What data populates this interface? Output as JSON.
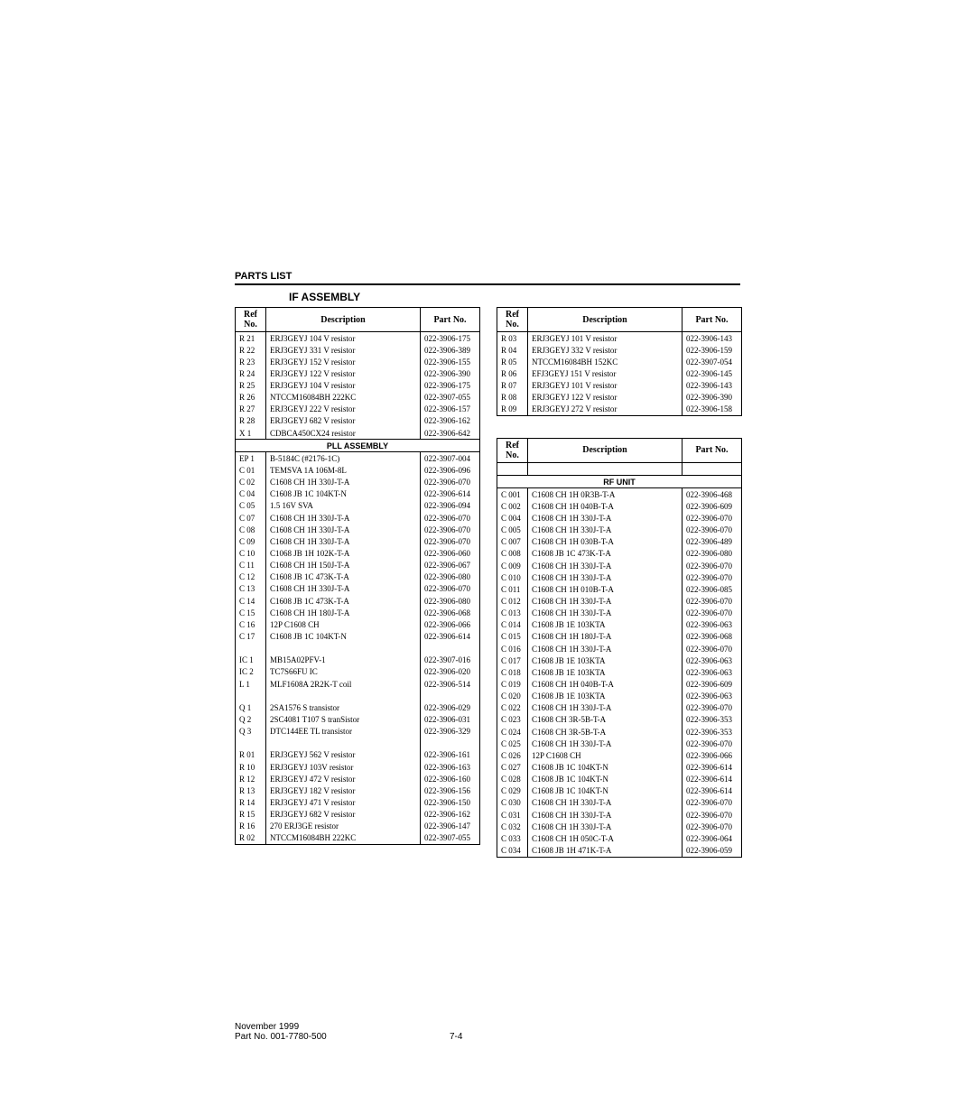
{
  "section_header": "PARTS LIST",
  "assembly_title": "IF ASSEMBLY",
  "headers": {
    "ref": "Ref No.",
    "desc": "Description",
    "pn": "Part No."
  },
  "footer_line1": "November 1999",
  "footer_line2": "Part No. 001-7780-500",
  "page_number": "7-4",
  "left_top_rows": [
    {
      "ref": "R 21",
      "desc": "ERJ3GEYJ 104 V resistor",
      "pn": "022-3906-175"
    },
    {
      "ref": "R 22",
      "desc": "ERJ3GEYJ 331 V resistor",
      "pn": "022-3906-389"
    },
    {
      "ref": "R 23",
      "desc": "ERJ3GEYJ 152 V resistor",
      "pn": "022-3906-155"
    },
    {
      "ref": "R 24",
      "desc": "ERJ3GEYJ 122 V resistor",
      "pn": "022-3906-390"
    },
    {
      "ref": "R 25",
      "desc": "ERJ3GEYJ 104 V resistor",
      "pn": "022-3906-175"
    },
    {
      "ref": "R 26",
      "desc": "NTCCM16084BH 222KC",
      "pn": "022-3907-055"
    },
    {
      "ref": "R 27",
      "desc": "ERJ3GEYJ 222 V resistor",
      "pn": "022-3906-157"
    },
    {
      "ref": "R 28",
      "desc": "ERJ3GEYJ 682 V resistor",
      "pn": "022-3906-162"
    },
    {
      "ref": "X 1",
      "desc": "CDBCA450CX24 resistor",
      "pn": "022-3906-642"
    }
  ],
  "pll_heading": "PLL ASSEMBLY",
  "pll_rows": [
    {
      "ref": "EP 1",
      "desc": "B-5184C (#2176-1C)",
      "pn": "022-3907-004"
    },
    {
      "ref": "C 01",
      "desc": "TEMSVA 1A 106M-8L",
      "pn": "022-3906-096"
    },
    {
      "ref": "C 02",
      "desc": "C1608 CH 1H 330J-T-A",
      "pn": "022-3906-070"
    },
    {
      "ref": "C 04",
      "desc": "C1608 JB 1C 104KT-N",
      "pn": "022-3906-614"
    },
    {
      "ref": "C 05",
      "desc": "1.5 16V SVA",
      "pn": "022-3906-094"
    },
    {
      "ref": "C 07",
      "desc": "C1608 CH 1H 330J-T-A",
      "pn": "022-3906-070"
    },
    {
      "ref": "C 08",
      "desc": "C1608 CH 1H 330J-T-A",
      "pn": "022-3906-070"
    },
    {
      "ref": "C 09",
      "desc": "C1608 CH 1H 330J-T-A",
      "pn": "022-3906-070"
    },
    {
      "ref": "C 10",
      "desc": "C1068 JB 1H 102K-T-A",
      "pn": "022-3906-060"
    },
    {
      "ref": "C 11",
      "desc": "C1608 CH 1H 150J-T-A",
      "pn": "022-3906-067"
    },
    {
      "ref": "C 12",
      "desc": "C1608 JB 1C 473K-T-A",
      "pn": "022-3906-080"
    },
    {
      "ref": "C 13",
      "desc": "C1608 CH 1H 330J-T-A",
      "pn": "022-3906-070"
    },
    {
      "ref": "C 14",
      "desc": "C1608 JB 1C 473K-T-A",
      "pn": "022-3906-080"
    },
    {
      "ref": "C 15",
      "desc": "C1608 CH 1H 180J-T-A",
      "pn": "022-3906-068"
    },
    {
      "ref": "C 16",
      "desc": "12P C1608 CH",
      "pn": "022-3906-066"
    },
    {
      "ref": "C 17",
      "desc": "C1608 JB 1C 104KT-N",
      "pn": "022-3906-614"
    },
    {
      "ref": "",
      "desc": "",
      "pn": ""
    },
    {
      "ref": "IC 1",
      "desc": "MB15A02PFV-1",
      "pn": "022-3907-016"
    },
    {
      "ref": "IC 2",
      "desc": "TC7S66FU IC",
      "pn": "022-3906-020"
    },
    {
      "ref": "L 1",
      "desc": "MLF1608A 2R2K-T coil",
      "pn": "022-3906-514"
    },
    {
      "ref": "",
      "desc": "",
      "pn": ""
    },
    {
      "ref": "Q 1",
      "desc": "2SA1576 S transistor",
      "pn": "022-3906-029"
    },
    {
      "ref": "Q 2",
      "desc": "2SC4081 T107 S tranSistor",
      "pn": "022-3906-031"
    },
    {
      "ref": "Q 3",
      "desc": "DTC144EE TL transistor",
      "pn": "022-3906-329"
    },
    {
      "ref": "",
      "desc": "",
      "pn": ""
    },
    {
      "ref": "R 01",
      "desc": "ERJ3GEYJ 562 V resistor",
      "pn": "022-3906-161"
    },
    {
      "ref": "R 10",
      "desc": "ERJ3GEYJ 103V resistor",
      "pn": "022-3906-163"
    },
    {
      "ref": "R 12",
      "desc": "ERJ3GEYJ 472 V resistor",
      "pn": "022-3906-160"
    },
    {
      "ref": "R 13",
      "desc": "ERJ3GEYJ 182 V resistor",
      "pn": "022-3906-156"
    },
    {
      "ref": "R 14",
      "desc": "ERJ3GEYJ 471 V resistor",
      "pn": "022-3906-150"
    },
    {
      "ref": "R 15",
      "desc": "ERJ3GEYJ 682 V resistor",
      "pn": "022-3906-162"
    },
    {
      "ref": "R 16",
      "desc": "270 ERJ3GE resistor",
      "pn": "022-3906-147"
    },
    {
      "ref": "R 02",
      "desc": "NTCCM16084BH 222KC",
      "pn": "022-3907-055"
    }
  ],
  "right_top_rows": [
    {
      "ref": "R 03",
      "desc": "ERJ3GEYJ 101 V resistor",
      "pn": "022-3906-143"
    },
    {
      "ref": "R 04",
      "desc": "ERJ3GEYJ 332 V resistor",
      "pn": "022-3906-159"
    },
    {
      "ref": "R 05",
      "desc": "NTCCM16084BH 152KC",
      "pn": "022-3907-054"
    },
    {
      "ref": "R 06",
      "desc": "EFJ3GEYJ 151 V resistor",
      "pn": "022-3906-145"
    },
    {
      "ref": "R 07",
      "desc": "ERJ3GEYJ 101 V resistor",
      "pn": "022-3906-143"
    },
    {
      "ref": "R 08",
      "desc": "ERJ3GEYJ 122 V resistor",
      "pn": "022-3906-390"
    },
    {
      "ref": "R 09",
      "desc": "ERJ3GEYJ 272 V resistor",
      "pn": "022-3906-158"
    }
  ],
  "rf_heading": "RF UNIT",
  "rf_rows": [
    {
      "ref": "C 001",
      "desc": "C1608 CH 1H 0R3B-T-A",
      "pn": "022-3906-468"
    },
    {
      "ref": "C 002",
      "desc": "C1608 CH 1H 040B-T-A",
      "pn": "022-3906-609"
    },
    {
      "ref": "C 004",
      "desc": "C1608 CH 1H 330J-T-A",
      "pn": "022-3906-070"
    },
    {
      "ref": "C 005",
      "desc": "C1608 CH 1H 330J-T-A",
      "pn": "022-3906-070"
    },
    {
      "ref": "C 007",
      "desc": "C1608 CH 1H 030B-T-A",
      "pn": "022-3906-489"
    },
    {
      "ref": "C 008",
      "desc": "C1608 JB 1C 473K-T-A",
      "pn": "022-3906-080"
    },
    {
      "ref": "C 009",
      "desc": "C1608 CH 1H 330J-T-A",
      "pn": "022-3906-070"
    },
    {
      "ref": "C 010",
      "desc": "C1608 CH 1H 330J-T-A",
      "pn": "022-3906-070"
    },
    {
      "ref": "C 011",
      "desc": "C1608 CH 1H 010B-T-A",
      "pn": "022-3906-085"
    },
    {
      "ref": "C 012",
      "desc": "C1608 CH 1H 330J-T-A",
      "pn": "022-3906-070"
    },
    {
      "ref": "C 013",
      "desc": "C1608 CH 1H 330J-T-A",
      "pn": "022-3906-070"
    },
    {
      "ref": "C 014",
      "desc": "C1608 JB 1E 103KTA",
      "pn": "022-3906-063"
    },
    {
      "ref": "C 015",
      "desc": "C1608 CH 1H 180J-T-A",
      "pn": "022-3906-068"
    },
    {
      "ref": "C 016",
      "desc": "C1608 CH 1H 330J-T-A",
      "pn": "022-3906-070"
    },
    {
      "ref": "C 017",
      "desc": "C1608 JB 1E 103KTA",
      "pn": "022-3906-063"
    },
    {
      "ref": "C 018",
      "desc": "C1608 JB 1E 103KTA",
      "pn": "022-3906-063"
    },
    {
      "ref": "C 019",
      "desc": "C1608 CH 1H 040B-T-A",
      "pn": "022-3906-609"
    },
    {
      "ref": "C 020",
      "desc": "C1608 JB 1E 103KTA",
      "pn": "022-3906-063"
    },
    {
      "ref": "C 022",
      "desc": "C1608 CH 1H 330J-T-A",
      "pn": "022-3906-070"
    },
    {
      "ref": "C 023",
      "desc": "C1608 CH 3R-5B-T-A",
      "pn": "022-3906-353"
    },
    {
      "ref": "C 024",
      "desc": "C1608 CH 3R-5B-T-A",
      "pn": "022-3906-353"
    },
    {
      "ref": "C 025",
      "desc": "C1608 CH 1H 330J-T-A",
      "pn": "022-3906-070"
    },
    {
      "ref": "C 026",
      "desc": "12P C1608 CH",
      "pn": "022-3906-066"
    },
    {
      "ref": "C 027",
      "desc": "C1608 JB 1C 104KT-N",
      "pn": "022-3906-614"
    },
    {
      "ref": "C 028",
      "desc": "C1608 JB 1C 104KT-N",
      "pn": "022-3906-614"
    },
    {
      "ref": "C 029",
      "desc": "C1608 JB 1C 104KT-N",
      "pn": "022-3906-614"
    },
    {
      "ref": "C 030",
      "desc": "C1608 CH 1H 330J-T-A",
      "pn": "022-3906-070"
    },
    {
      "ref": "C 031",
      "desc": "C1608 CH 1H 330J-T-A",
      "pn": "022-3906-070"
    },
    {
      "ref": "C 032",
      "desc": "C1608 CH 1H 330J-T-A",
      "pn": "022-3906-070"
    },
    {
      "ref": "C 033",
      "desc": "C1608 CH 1H 050C-T-A",
      "pn": "022-3906-064"
    },
    {
      "ref": "C 034",
      "desc": "C1608 JB 1H 471K-T-A",
      "pn": "022-3906-059"
    }
  ]
}
